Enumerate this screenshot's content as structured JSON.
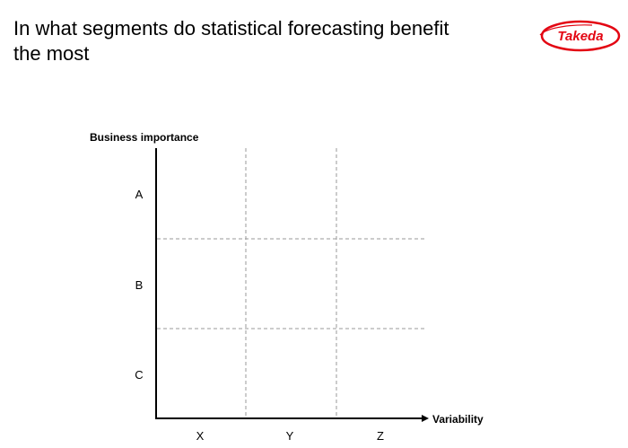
{
  "slide": {
    "title": "In what segments do statistical forecasting benefit the most"
  },
  "logo": {
    "text": "Takeda",
    "icon": "takeda-logo-icon",
    "color": "#e30613"
  },
  "matrix": {
    "y_axis_title": "Business importance",
    "x_axis_title": "Variability",
    "rows": [
      {
        "label": "A"
      },
      {
        "label": "B"
      },
      {
        "label": "C"
      }
    ],
    "columns": [
      {
        "label": "X"
      },
      {
        "label": "Y"
      },
      {
        "label": "Z"
      }
    ],
    "axis_color": "#000000",
    "grid_color": "#999999",
    "grid_style": "dashed"
  }
}
